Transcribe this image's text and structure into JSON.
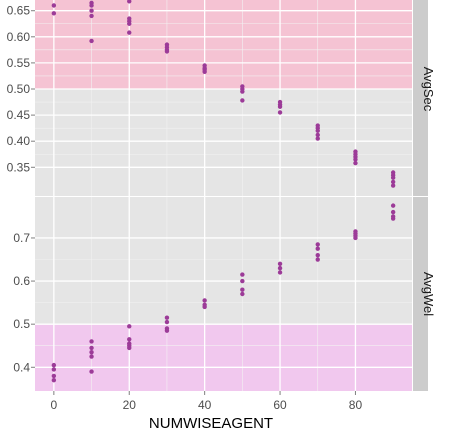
{
  "chart_data": {
    "type": "scatter",
    "xlabel": "NUMWISEAGENT",
    "x_ticks": [
      0,
      20,
      40,
      60,
      80
    ],
    "xlim": [
      -5,
      95
    ],
    "point_color": "#9c3b98",
    "facets": [
      {
        "strip_label": "AvgSec",
        "ylim": [
          0.295,
          0.705
        ],
        "y_ticks": [
          0.35,
          0.4,
          0.45,
          0.5,
          0.55,
          0.6,
          0.65
        ],
        "y_tick_labels": [
          "0.35",
          "0.40",
          "0.45",
          "0.50",
          "0.55",
          "0.60",
          "0.65"
        ],
        "band": {
          "from": 0.5,
          "to": 0.705,
          "color": "#f5c3d3"
        },
        "points": [
          [
            0,
            0.685
          ],
          [
            0,
            0.68
          ],
          [
            0,
            0.675
          ],
          [
            0,
            0.66
          ],
          [
            0,
            0.645
          ],
          [
            10,
            0.665
          ],
          [
            10,
            0.66
          ],
          [
            10,
            0.65
          ],
          [
            10,
            0.64
          ],
          [
            10,
            0.592
          ],
          [
            20,
            0.668
          ],
          [
            20,
            0.635
          ],
          [
            20,
            0.63
          ],
          [
            20,
            0.625
          ],
          [
            20,
            0.608
          ],
          [
            30,
            0.585
          ],
          [
            30,
            0.58
          ],
          [
            30,
            0.575
          ],
          [
            30,
            0.572
          ],
          [
            40,
            0.545
          ],
          [
            40,
            0.54
          ],
          [
            40,
            0.537
          ],
          [
            40,
            0.533
          ],
          [
            50,
            0.505
          ],
          [
            50,
            0.5
          ],
          [
            50,
            0.495
          ],
          [
            50,
            0.478
          ],
          [
            60,
            0.475
          ],
          [
            60,
            0.47
          ],
          [
            60,
            0.466
          ],
          [
            60,
            0.455
          ],
          [
            70,
            0.43
          ],
          [
            70,
            0.425
          ],
          [
            70,
            0.42
          ],
          [
            70,
            0.412
          ],
          [
            70,
            0.405
          ],
          [
            80,
            0.38
          ],
          [
            80,
            0.375
          ],
          [
            80,
            0.37
          ],
          [
            80,
            0.365
          ],
          [
            80,
            0.358
          ],
          [
            90,
            0.34
          ],
          [
            90,
            0.335
          ],
          [
            90,
            0.33
          ],
          [
            90,
            0.322
          ],
          [
            90,
            0.315
          ]
        ]
      },
      {
        "strip_label": "AvgWel",
        "ylim": [
          0.345,
          0.795
        ],
        "y_ticks": [
          0.4,
          0.5,
          0.6,
          0.7
        ],
        "y_tick_labels": [
          "0.4",
          "0.5",
          "0.6",
          "0.7"
        ],
        "band": {
          "from": 0.345,
          "to": 0.5,
          "color": "#f1c8ee"
        },
        "points": [
          [
            0,
            0.405
          ],
          [
            0,
            0.395
          ],
          [
            0,
            0.38
          ],
          [
            0,
            0.37
          ],
          [
            10,
            0.46
          ],
          [
            10,
            0.445
          ],
          [
            10,
            0.435
          ],
          [
            10,
            0.425
          ],
          [
            10,
            0.39
          ],
          [
            20,
            0.495
          ],
          [
            20,
            0.465
          ],
          [
            20,
            0.455
          ],
          [
            20,
            0.45
          ],
          [
            20,
            0.445
          ],
          [
            30,
            0.515
          ],
          [
            30,
            0.505
          ],
          [
            30,
            0.49
          ],
          [
            30,
            0.485
          ],
          [
            40,
            0.555
          ],
          [
            40,
            0.545
          ],
          [
            40,
            0.54
          ],
          [
            50,
            0.615
          ],
          [
            50,
            0.6
          ],
          [
            50,
            0.58
          ],
          [
            50,
            0.57
          ],
          [
            60,
            0.64
          ],
          [
            60,
            0.63
          ],
          [
            60,
            0.62
          ],
          [
            70,
            0.685
          ],
          [
            70,
            0.675
          ],
          [
            70,
            0.66
          ],
          [
            70,
            0.65
          ],
          [
            80,
            0.715
          ],
          [
            80,
            0.71
          ],
          [
            80,
            0.705
          ],
          [
            80,
            0.7
          ],
          [
            90,
            0.775
          ],
          [
            90,
            0.76
          ],
          [
            90,
            0.75
          ],
          [
            90,
            0.745
          ]
        ]
      }
    ]
  }
}
